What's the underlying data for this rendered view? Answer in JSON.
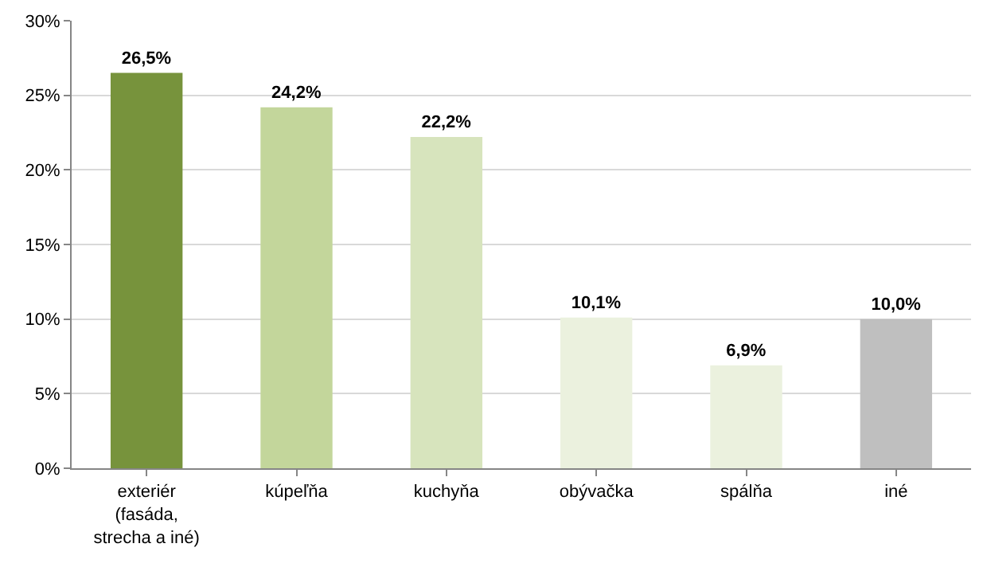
{
  "chart_data": {
    "type": "bar",
    "categories": [
      "exteriér\n(fasáda,\nstrecha a iné)",
      "kúpeľňa",
      "kuchyňa",
      "obývačka",
      "spálňa",
      "iné"
    ],
    "values": [
      26.5,
      24.2,
      22.2,
      10.1,
      6.9,
      10.0
    ],
    "colors": [
      "#77933c",
      "#c3d69b",
      "#d7e4bd",
      "#ebf1de",
      "#ebf1de",
      "#bfbfbf"
    ],
    "value_labels": [
      "26,5%",
      "24,2%",
      "22,2%",
      "10,1%",
      "6,9%",
      "10,0%"
    ],
    "ylim": [
      0,
      30
    ],
    "yticks": [
      {
        "value": 0,
        "label": "0%"
      },
      {
        "value": 5,
        "label": "5%"
      },
      {
        "value": 10,
        "label": "10%"
      },
      {
        "value": 15,
        "label": "15%"
      },
      {
        "value": 20,
        "label": "20%"
      },
      {
        "value": 25,
        "label": "25%"
      },
      {
        "value": 30,
        "label": "30%"
      }
    ],
    "grid": "y",
    "legend": false
  }
}
